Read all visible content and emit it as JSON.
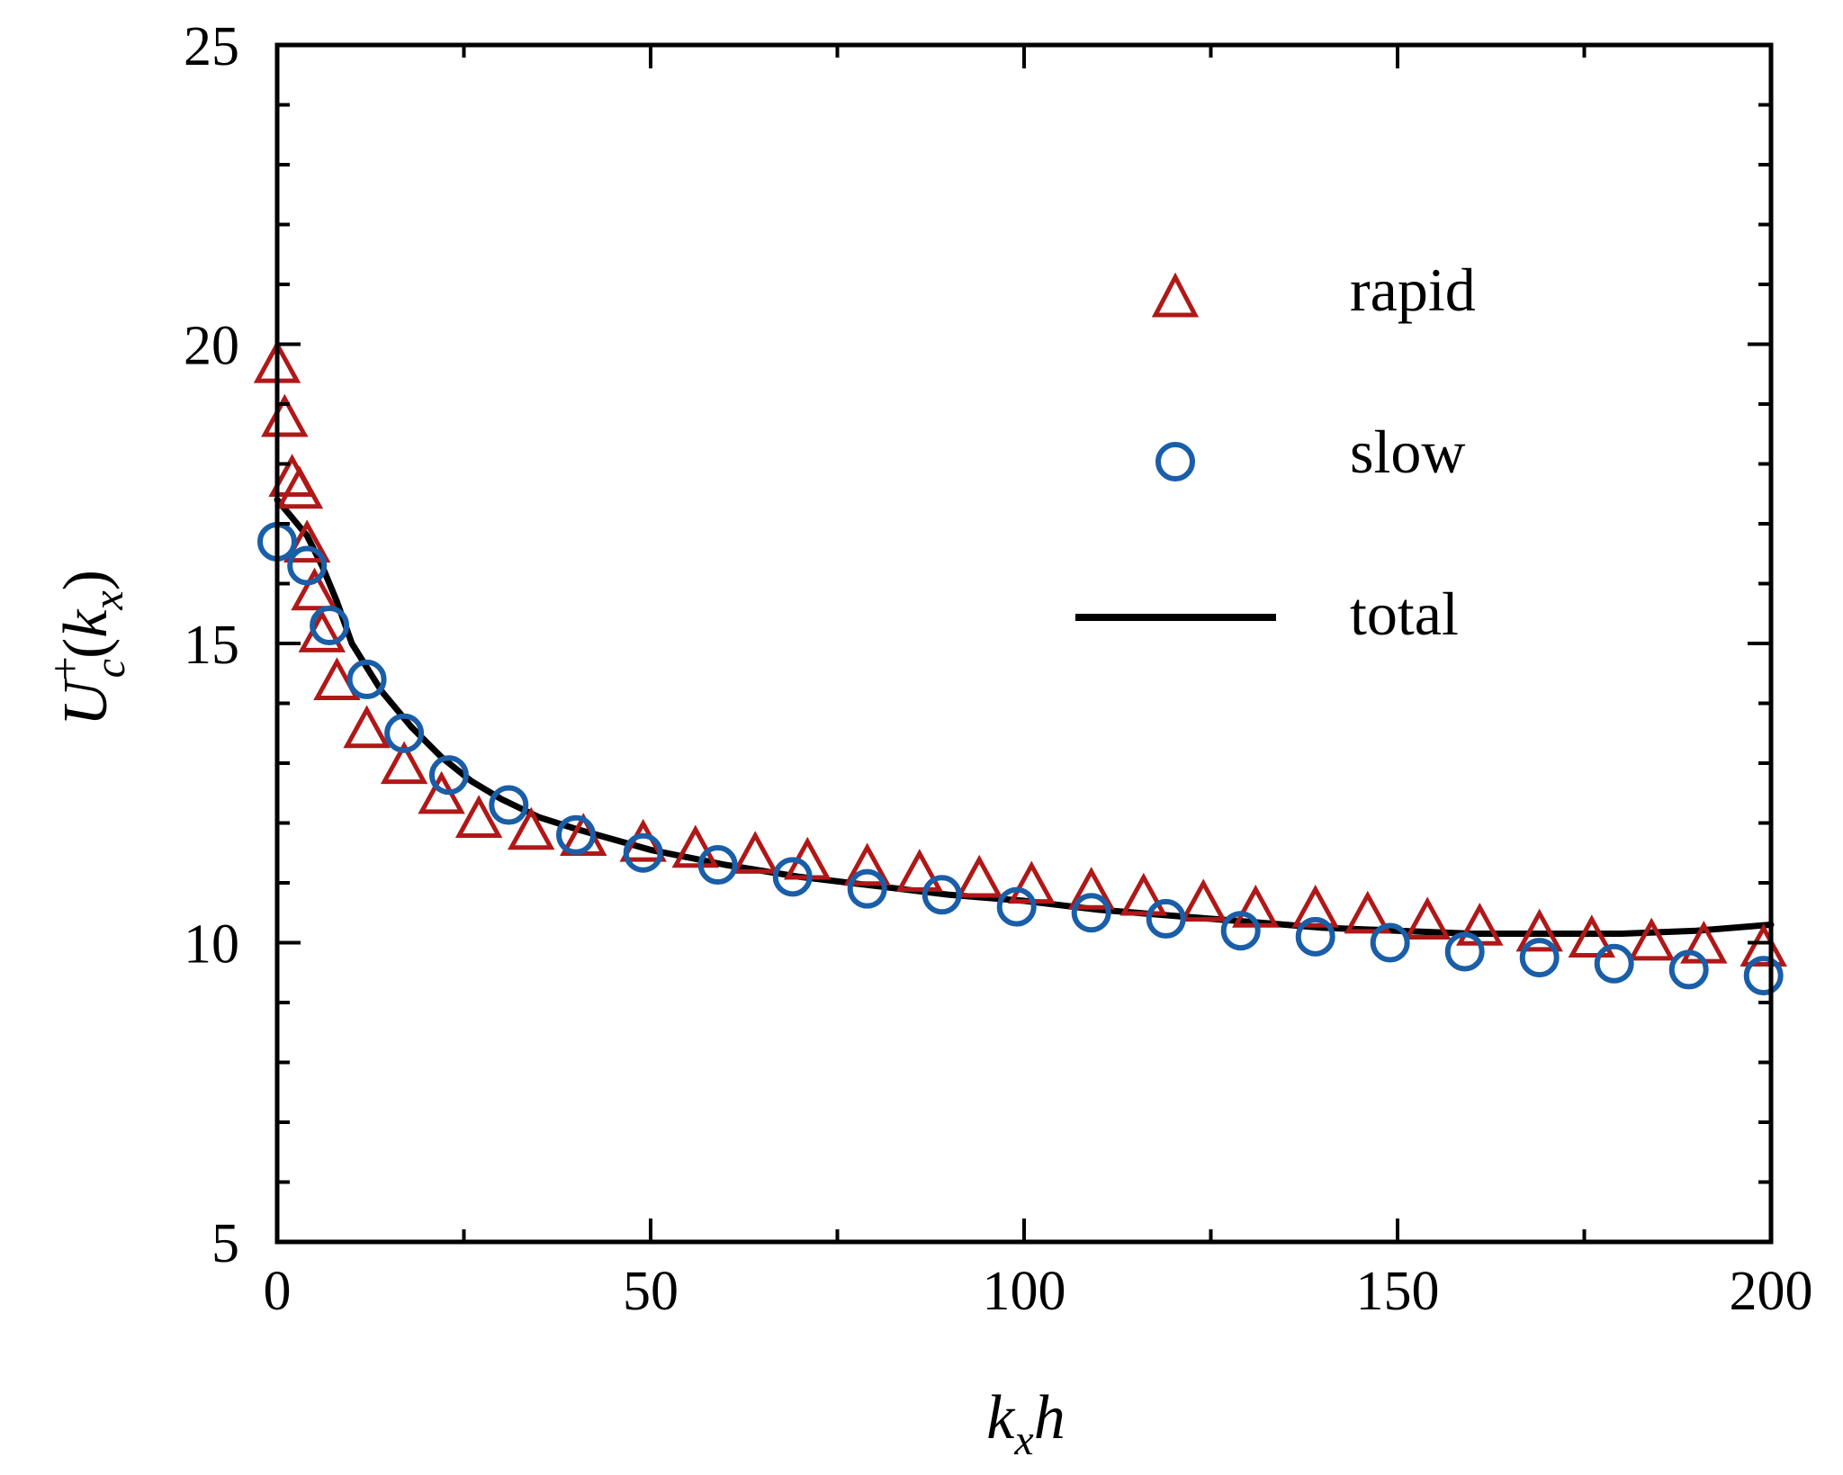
{
  "chart_data": {
    "type": "scatter",
    "title": "",
    "xlabel": {
      "base": "k",
      "sub": "x",
      "tail": "h"
    },
    "ylabel": {
      "base": "U",
      "sup": "+",
      "sub": "c",
      "open": "(",
      "arg": "k",
      "argsub": "x",
      "close": ")"
    },
    "xlim": [
      0,
      200
    ],
    "ylim": [
      5,
      25
    ],
    "xticks": [
      0,
      50,
      100,
      150,
      200
    ],
    "xtick_labels": [
      "0",
      "50",
      "100",
      "150",
      "200"
    ],
    "yticks": [
      5,
      10,
      15,
      20,
      25
    ],
    "ytick_labels": [
      "5",
      "10",
      "15",
      "20",
      "25"
    ],
    "grid": false,
    "legend_position": "upper-right",
    "colors": {
      "rapid": "#b01818",
      "slow": "#1a5ea8",
      "total": "#000000",
      "axes": "#000000"
    },
    "series": [
      {
        "name": "rapid",
        "marker": "triangle",
        "x": [
          0,
          1,
          2,
          3,
          4,
          5,
          6,
          8,
          12,
          17,
          22,
          27,
          34,
          41,
          49,
          56,
          64,
          71,
          79,
          86,
          94,
          101,
          109,
          116,
          124,
          131,
          139,
          146,
          154,
          161,
          169,
          176,
          184,
          191,
          199
        ],
        "y": [
          19.6,
          18.7,
          17.7,
          17.5,
          16.6,
          15.8,
          15.1,
          14.3,
          13.5,
          12.9,
          12.4,
          12.0,
          11.8,
          11.7,
          11.6,
          11.5,
          11.4,
          11.3,
          11.2,
          11.1,
          11.0,
          10.9,
          10.8,
          10.7,
          10.6,
          10.5,
          10.5,
          10.4,
          10.3,
          10.2,
          10.1,
          10.0,
          9.95,
          9.9,
          9.85
        ]
      },
      {
        "name": "slow",
        "marker": "circle",
        "x": [
          0,
          4,
          7,
          12,
          17,
          23,
          31,
          40,
          49,
          59,
          69,
          79,
          89,
          99,
          109,
          119,
          129,
          139,
          149,
          159,
          169,
          179,
          189,
          199
        ],
        "y": [
          16.7,
          16.3,
          15.3,
          14.4,
          13.5,
          12.8,
          12.3,
          11.8,
          11.5,
          11.3,
          11.1,
          10.9,
          10.8,
          10.6,
          10.5,
          10.4,
          10.2,
          10.1,
          10.0,
          9.85,
          9.75,
          9.65,
          9.55,
          9.45
        ]
      },
      {
        "name": "total",
        "marker": "line",
        "x": [
          0,
          2,
          4,
          6,
          8,
          10,
          14,
          18,
          22,
          26,
          30,
          35,
          40,
          50,
          60,
          70,
          80,
          90,
          100,
          110,
          120,
          130,
          140,
          150,
          160,
          170,
          180,
          190,
          200
        ],
        "y": [
          17.4,
          17.1,
          16.8,
          16.3,
          15.7,
          15.0,
          14.2,
          13.6,
          13.1,
          12.7,
          12.4,
          12.1,
          11.9,
          11.55,
          11.3,
          11.1,
          10.95,
          10.8,
          10.7,
          10.55,
          10.45,
          10.35,
          10.25,
          10.2,
          10.15,
          10.15,
          10.15,
          10.2,
          10.3
        ]
      }
    ],
    "legend": [
      {
        "label": "rapid",
        "marker": "triangle"
      },
      {
        "label": "slow",
        "marker": "circle"
      },
      {
        "label": "total",
        "marker": "line"
      }
    ]
  }
}
